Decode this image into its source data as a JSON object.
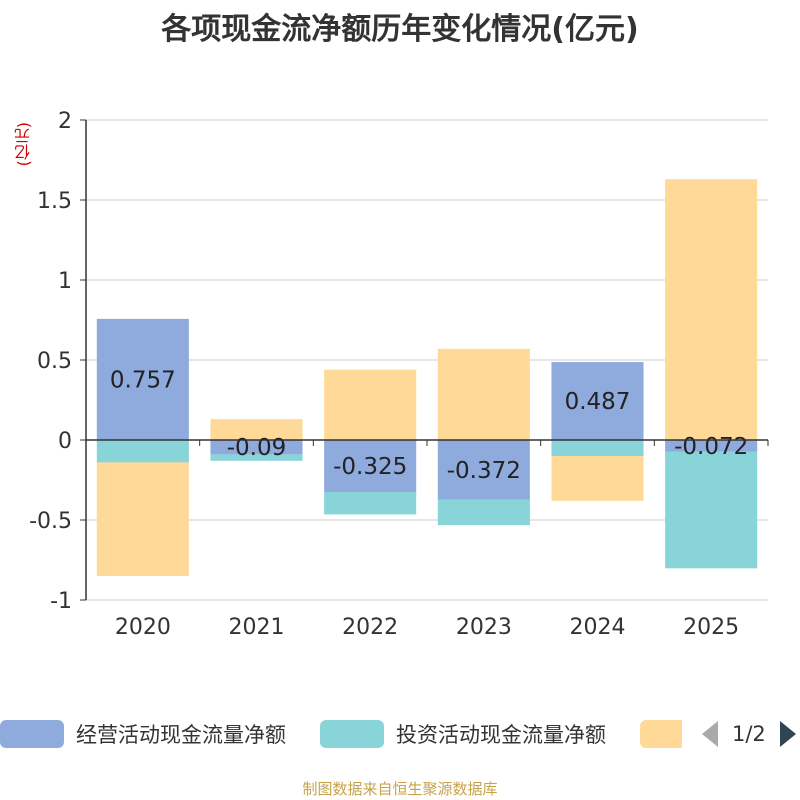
{
  "chart_data": {
    "type": "bar",
    "stacked": true,
    "title": "各项现金流净额历年变化情况(亿元)",
    "ylabel": "(亿元)",
    "xlabel": "",
    "categories": [
      "2020",
      "2021",
      "2022",
      "2023",
      "2024",
      "2025"
    ],
    "ylim": [
      -1,
      2
    ],
    "yticks": [
      -1,
      -0.5,
      0,
      0.5,
      1,
      1.5,
      2
    ],
    "ytick_labels": [
      "-1",
      "-0.5",
      "0",
      "0.5",
      "1",
      "1.5",
      "2"
    ],
    "grid": true,
    "series": [
      {
        "name": "经营活动现金流量净额",
        "color": "#8faadc",
        "values": [
          0.757,
          -0.09,
          -0.325,
          -0.372,
          0.487,
          -0.072
        ],
        "labels": [
          "0.757",
          "-0.09",
          "-0.325",
          "-0.372",
          "0.487",
          "-0.072"
        ]
      },
      {
        "name": "投资活动现金流量净额",
        "color": "#88d4d8",
        "values": [
          -0.14,
          -0.04,
          -0.14,
          -0.16,
          -0.1,
          -0.73
        ]
      },
      {
        "name": "",
        "color": "#ffd998",
        "values": [
          -0.71,
          0.13,
          0.44,
          0.57,
          -0.28,
          1.63
        ]
      }
    ]
  },
  "legend": {
    "items": [
      {
        "label": "经营活动现金流量净额",
        "color": "#8faadc"
      },
      {
        "label": "投资活动现金流量净额",
        "color": "#88d4d8"
      },
      {
        "label": "",
        "color": "#ffd998"
      }
    ],
    "page_indicator": "1/2"
  },
  "footer": {
    "source": "制图数据来自恒生聚源数据库"
  }
}
